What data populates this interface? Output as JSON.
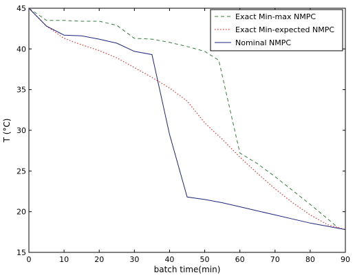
{
  "chart_data": {
    "type": "line",
    "title": "",
    "xlabel": "batch time(min)",
    "ylabel": "T (°C)",
    "xlim": [
      0,
      90
    ],
    "ylim": [
      15,
      45
    ],
    "xticks": [
      0,
      10,
      20,
      30,
      40,
      50,
      60,
      70,
      80,
      90
    ],
    "yticks": [
      15,
      20,
      25,
      30,
      35,
      40,
      45
    ],
    "grid": false,
    "legend_position": "top-right",
    "series": [
      {
        "name": "Exact Min-max NMPC",
        "color": "#2e7d32",
        "style": "dashed",
        "x": [
          0,
          5,
          10,
          15,
          20,
          25,
          30,
          35,
          40,
          45,
          50,
          54,
          60,
          65,
          70,
          75,
          80,
          85,
          88
        ],
        "y": [
          45,
          43.5,
          43.5,
          43.4,
          43.4,
          42.9,
          41.3,
          41.2,
          40.8,
          40.3,
          39.7,
          38.6,
          27.2,
          25.9,
          24.3,
          22.6,
          20.9,
          19.1,
          18
        ]
      },
      {
        "name": "Exact Min-expected NMPC",
        "color": "#e53935",
        "style": "dotted",
        "x": [
          0,
          5,
          10,
          15,
          20,
          25,
          30,
          35,
          40,
          45,
          50,
          55,
          60,
          65,
          70,
          75,
          80,
          85,
          90
        ],
        "y": [
          45,
          42.8,
          41.3,
          40.5,
          39.8,
          38.9,
          37.7,
          36.5,
          35.2,
          33.6,
          30.9,
          28.9,
          26.7,
          24.7,
          22.8,
          21.1,
          19.6,
          18.4,
          17.8
        ]
      },
      {
        "name": "Nominal NMPC",
        "color": "#1a237e",
        "style": "solid",
        "x": [
          0,
          5,
          10,
          15,
          20,
          25,
          30,
          35,
          40,
          45,
          50,
          55,
          60,
          65,
          70,
          75,
          80,
          85,
          90
        ],
        "y": [
          45,
          42.8,
          41.7,
          41.6,
          41.2,
          40.7,
          39.7,
          39.3,
          29.5,
          21.8,
          21.5,
          21.1,
          20.6,
          20.1,
          19.6,
          19.1,
          18.6,
          18.2,
          17.8
        ]
      }
    ]
  }
}
